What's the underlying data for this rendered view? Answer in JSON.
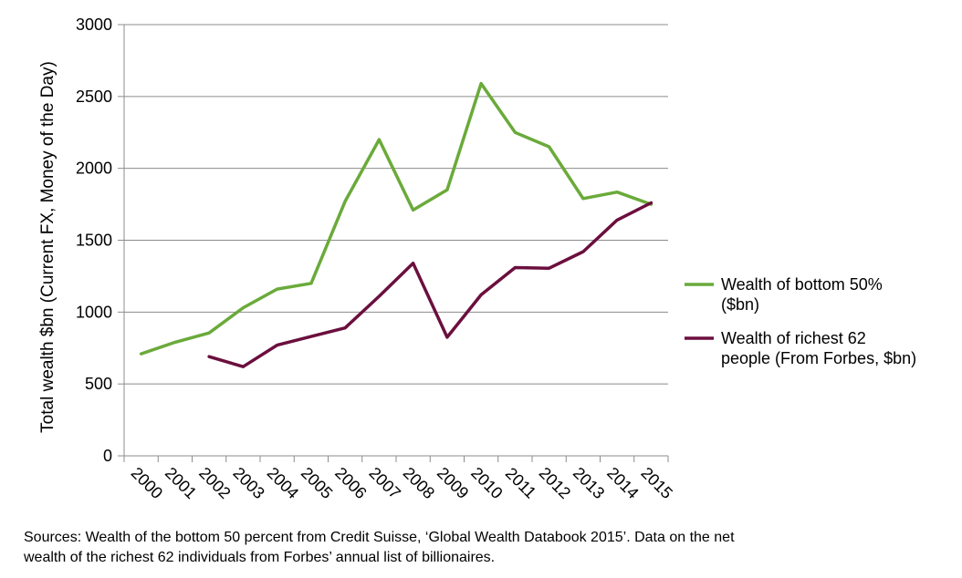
{
  "chart_data": {
    "type": "line",
    "x": [
      "2000",
      "2001",
      "2002",
      "2003",
      "2004",
      "2005",
      "2006",
      "2007",
      "2008",
      "2009",
      "2010",
      "2011",
      "2012",
      "2013",
      "2014",
      "2015"
    ],
    "ylabel": "Total wealth $bn (Current FX, Money of the Day)",
    "ylim": [
      0,
      3000
    ],
    "yticks": [
      0,
      500,
      1000,
      1500,
      2000,
      2500,
      3000
    ],
    "grid": "horizontal",
    "legend_position": "right",
    "series": [
      {
        "name": "Wealth of bottom 50% ($bn)",
        "legend_lines": [
          "Wealth of bottom 50%",
          "($bn)"
        ],
        "color": "#6aaa3a",
        "values": [
          710,
          790,
          855,
          1030,
          1160,
          1200,
          1770,
          2200,
          1710,
          1850,
          2590,
          2250,
          2150,
          1790,
          1835,
          1750
        ]
      },
      {
        "name": "Wealth of richest 62 people (From Forbes, $bn)",
        "legend_lines": [
          "Wealth of richest 62",
          "people (From Forbes, $bn)"
        ],
        "color": "#6b0f3e",
        "values": [
          null,
          null,
          690,
          620,
          770,
          830,
          890,
          1110,
          1340,
          825,
          1120,
          1310,
          1305,
          1420,
          1640,
          1760
        ]
      }
    ]
  },
  "footer": {
    "sources_line1": "Sources: Wealth of the bottom 50 percent from Credit Suisse, ‘Global Wealth Databook 2015’. Data on the net",
    "sources_line2": "wealth of the richest 62 individuals from Forbes’ annual list of billionaires."
  }
}
